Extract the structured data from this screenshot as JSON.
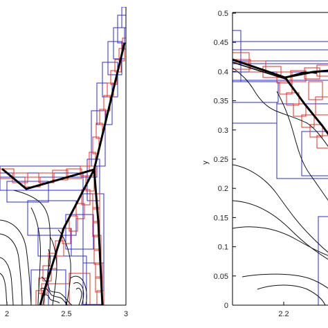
{
  "chart_data": [
    {
      "type": "contour",
      "panel": "left",
      "xlabel": "",
      "ylabel": "",
      "xlim": [
        2.0,
        3.0
      ],
      "x_ticks": [
        {
          "value": 2.0,
          "label": "2"
        },
        {
          "value": 2.5,
          "label": "2.5"
        },
        {
          "value": 3.0,
          "label": "3"
        }
      ],
      "colors": {
        "refine_level_1": "#2b2bd8",
        "refine_level_2": "#e0302a",
        "contours": "#111111",
        "shock_front": "#000000"
      },
      "shock_front": [
        [
          2.16,
          0.3
        ],
        [
          2.52,
          0.325
        ],
        [
          2.76,
          0.34
        ],
        [
          2.99,
          0.48
        ]
      ],
      "stem": [
        [
          2.73,
          0.34
        ],
        [
          2.47,
          0.08
        ],
        [
          2.36,
          0.0
        ]
      ],
      "stem_right": [
        [
          2.73,
          0.34
        ],
        [
          2.81,
          0.0
        ]
      ]
    },
    {
      "type": "contour",
      "panel": "right",
      "xlabel": "",
      "ylabel": "y",
      "xlim": [
        2.0,
        2.6
      ],
      "ylim": [
        0,
        0.5
      ],
      "x_ticks": [
        {
          "value": 2.2,
          "label": "2.2"
        }
      ],
      "y_ticks": [
        {
          "value": 0,
          "label": "0"
        },
        {
          "value": 0.05,
          "label": "0.05"
        },
        {
          "value": 0.1,
          "label": "0.1"
        },
        {
          "value": 0.15,
          "label": "0.15"
        },
        {
          "value": 0.2,
          "label": "0.2"
        },
        {
          "value": 0.25,
          "label": "0.25"
        },
        {
          "value": 0.3,
          "label": "0.3"
        },
        {
          "value": 0.35,
          "label": "0.35"
        },
        {
          "value": 0.4,
          "label": "0.4"
        },
        {
          "value": 0.45,
          "label": "0.45"
        },
        {
          "value": 0.5,
          "label": "0.5"
        }
      ],
      "shock_front": [
        [
          2.0,
          0.418
        ],
        [
          2.2,
          0.388
        ],
        [
          2.3,
          0.398
        ],
        [
          2.38,
          0.405
        ]
      ],
      "stem": [
        [
          2.2,
          0.388
        ],
        [
          2.29,
          0.32
        ],
        [
          2.38,
          0.26
        ]
      ]
    }
  ]
}
